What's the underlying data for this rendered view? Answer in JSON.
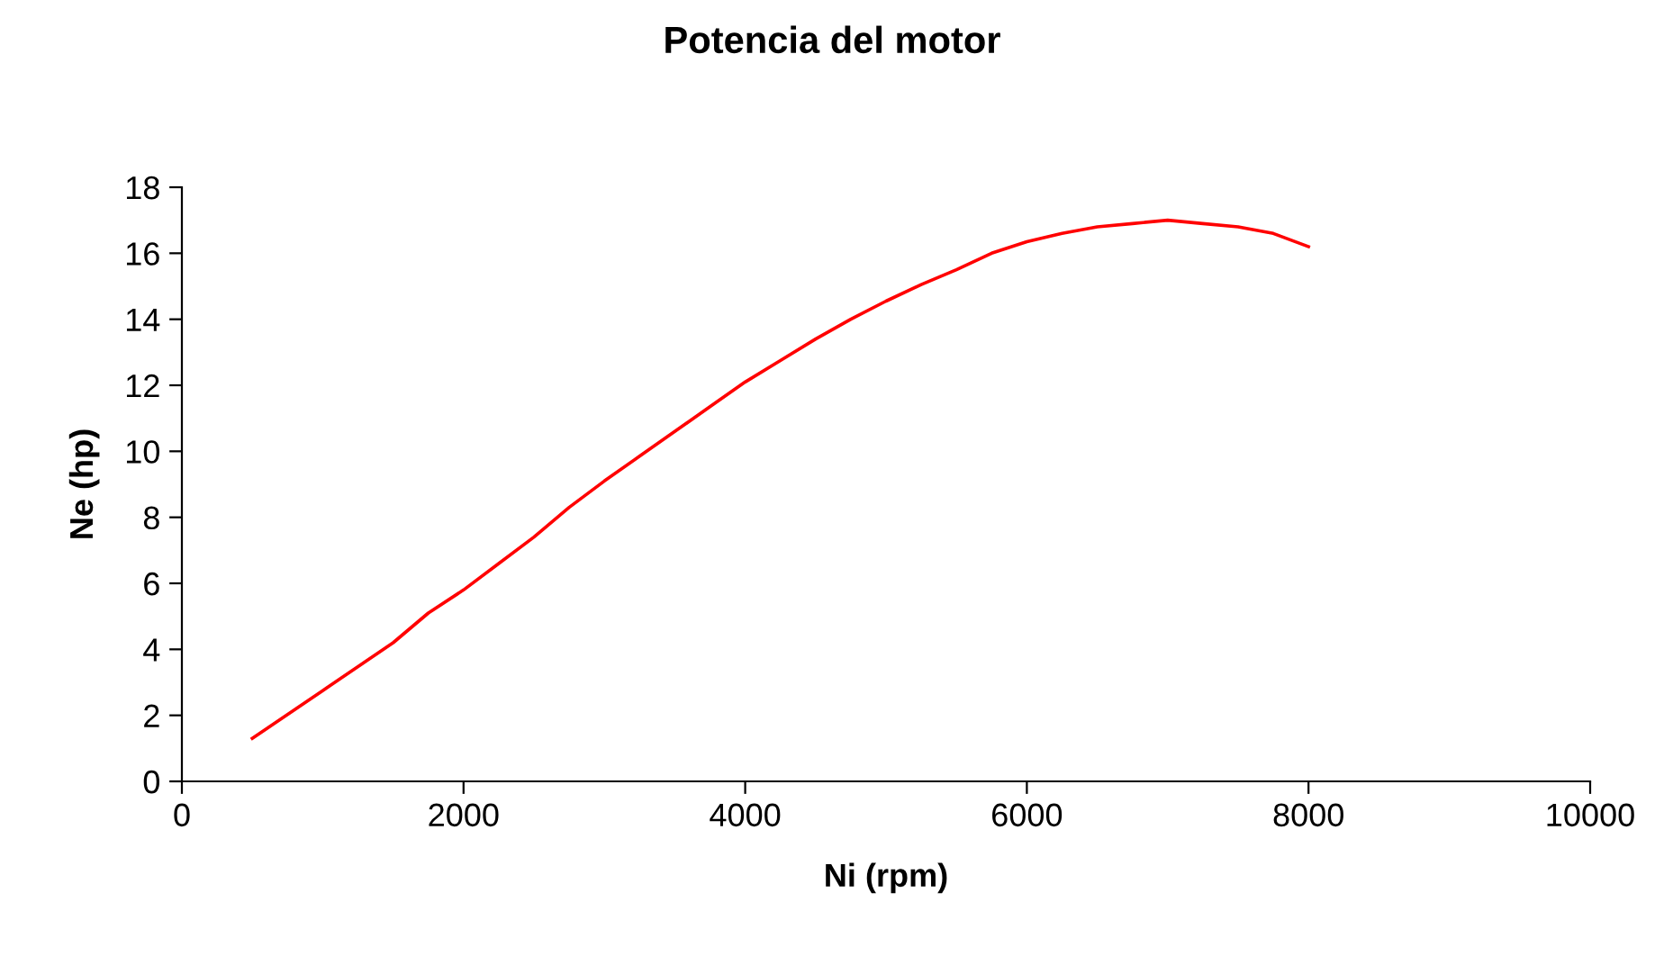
{
  "chart_data": {
    "type": "line",
    "title": "Potencia del motor",
    "xlabel": "Ni (rpm)",
    "ylabel": "Ne (hp)",
    "x": [
      500,
      1000,
      1500,
      1750,
      2000,
      2250,
      2500,
      2750,
      3000,
      3250,
      3500,
      3750,
      4000,
      4250,
      4500,
      4750,
      5000,
      5250,
      5500,
      5750,
      6000,
      6250,
      6500,
      6750,
      7000,
      7250,
      7500,
      7750,
      8000
    ],
    "series": [
      {
        "color": "#ff0000",
        "values": [
          1.3,
          2.75,
          4.2,
          5.1,
          5.8,
          6.6,
          7.4,
          8.3,
          9.1,
          9.85,
          10.6,
          11.35,
          12.1,
          12.75,
          13.4,
          14.0,
          14.55,
          15.05,
          15.5,
          16.0,
          16.35,
          16.6,
          16.8,
          16.9,
          17.0,
          16.9,
          16.8,
          16.6,
          16.2
        ]
      }
    ],
    "xlim": [
      0,
      10000
    ],
    "xticks": [
      0,
      2000,
      4000,
      6000,
      8000,
      10000
    ],
    "ylim": [
      0,
      18
    ],
    "yticks": [
      0,
      2,
      4,
      6,
      8,
      10,
      12,
      14,
      16,
      18
    ],
    "grid": false,
    "legend": false,
    "marker": "none",
    "line_style": "solid"
  }
}
